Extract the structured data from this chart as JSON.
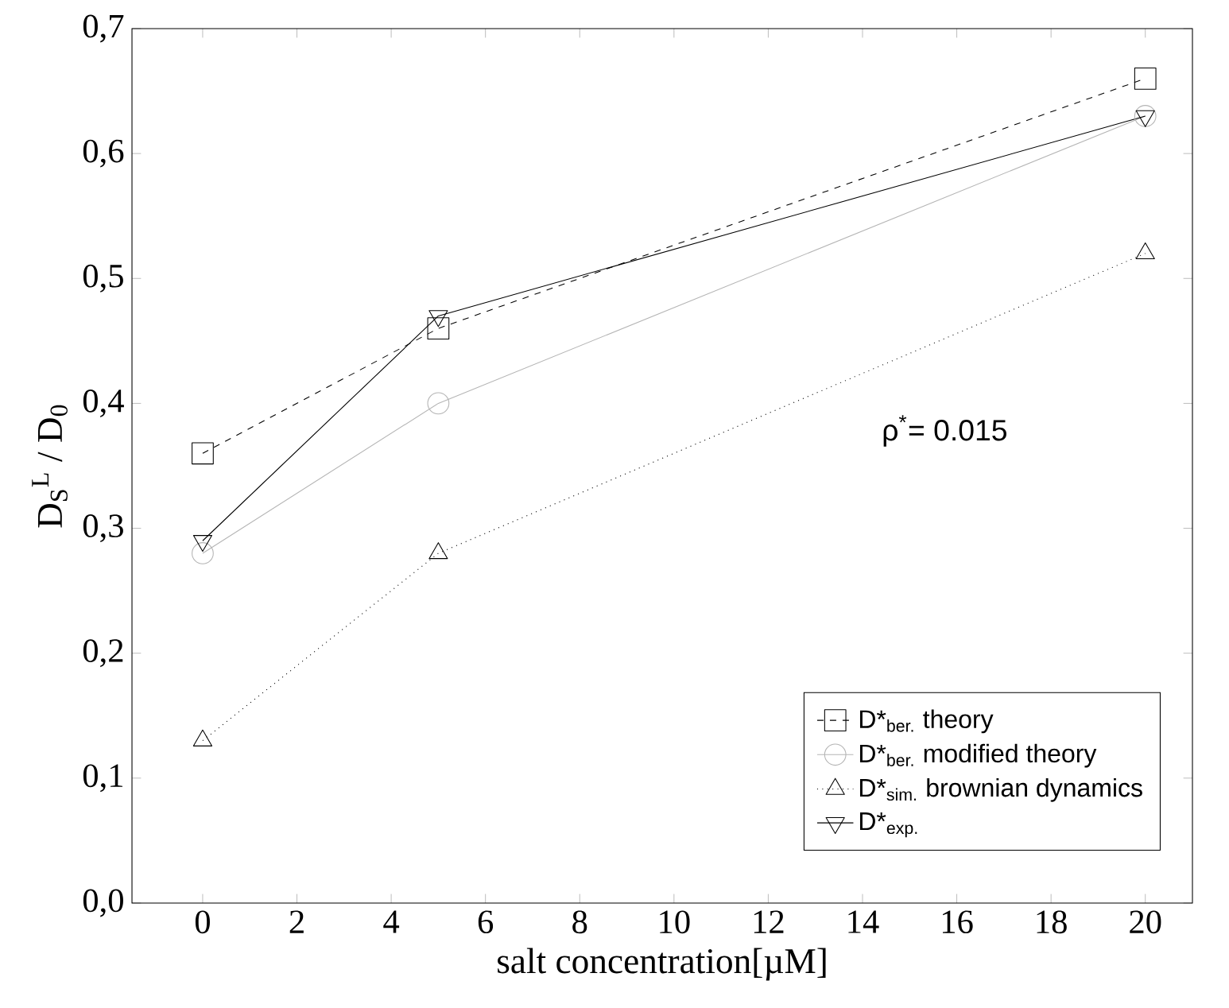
{
  "chart_data": {
    "type": "line",
    "xlabel": "salt concentration[µM]",
    "ylabel": "D$_{S}$$^{L}$ / D$_{0}$",
    "x": [
      0,
      5,
      20
    ],
    "series": [
      {
        "name": "D*$_{ber.}$ theory",
        "color": "#000000",
        "values": [
          0.36,
          0.46,
          0.66
        ],
        "marker": "square",
        "line_style": "dashed"
      },
      {
        "name": "D*$_{ber.}$ modified theory",
        "color": "#b4b4b4",
        "values": [
          0.28,
          0.4,
          0.63
        ],
        "marker": "circle",
        "line_style": "solid"
      },
      {
        "name": "D*$_{sim.}$ brownian dynamics",
        "color": "#000000",
        "values": [
          0.13,
          0.28,
          0.52
        ],
        "marker": "triangle",
        "line_style": "dotted"
      },
      {
        "name": "D*$_{exp.}$",
        "color": "#000000",
        "values": [
          0.29,
          0.47,
          0.63
        ],
        "marker": "triangle down",
        "line_style": "solid"
      }
    ],
    "annotations": [
      "ρ$^{*}$= 0.015"
    ],
    "xlim": [
      -1.5,
      21
    ],
    "ylim": [
      0,
      0.7
    ],
    "xticks": [
      0,
      2,
      4,
      6,
      8,
      10,
      12,
      14,
      16,
      18,
      20
    ],
    "yticks": [
      {
        "value": 0,
        "label": "0,0"
      },
      {
        "value": 0.1,
        "label": "0,1"
      },
      {
        "value": 0.2,
        "label": "0,2"
      },
      {
        "value": 0.3,
        "label": "0,3"
      },
      {
        "value": 0.4,
        "label": "0,4"
      },
      {
        "value": 0.5,
        "label": "0,5"
      },
      {
        "value": 0.6,
        "label": "0,6"
      },
      {
        "value": 0.7,
        "label": "0,7"
      }
    ],
    "grid": false,
    "legend": "bottom right"
  }
}
